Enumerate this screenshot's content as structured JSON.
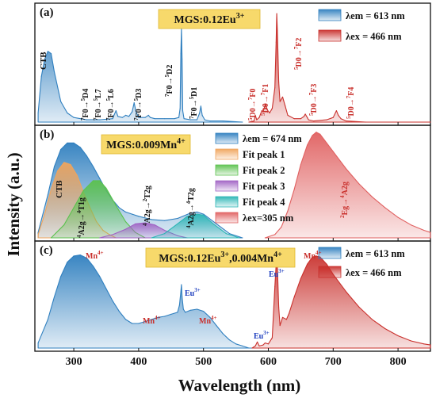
{
  "figure": {
    "ylabel": "Intensity (a.u.)",
    "xlabel": "Wavelength (nm)",
    "xlim": [
      240,
      850
    ],
    "xticks": [
      "300",
      "400",
      "500",
      "600",
      "700",
      "800"
    ],
    "xtick_values": [
      300,
      400,
      500,
      600,
      700,
      800
    ]
  },
  "chart_data": [
    {
      "type": "area",
      "panel_label": "(a)",
      "title": "MGS:0.12Eu",
      "title_sup": "3+",
      "xlim": [
        240,
        850
      ],
      "legend": [
        "λem = 613 nm",
        "λex = 466 nm"
      ],
      "colors": {
        "excitation": "#2f7fbf",
        "emission": "#c9302c"
      },
      "series": [
        {
          "name": "λem = 613 nm",
          "x": [
            245,
            250,
            255,
            260,
            265,
            270,
            280,
            290,
            300,
            320,
            340,
            360,
            362,
            365,
            368,
            375,
            380,
            385,
            390,
            393,
            396,
            400,
            410,
            415,
            418,
            425,
            440,
            455,
            462,
            464,
            465,
            466,
            467,
            468,
            470,
            480,
            490,
            494,
            496,
            498,
            502,
            510,
            530,
            560
          ],
          "y": [
            0.08,
            0.4,
            0.55,
            0.62,
            0.6,
            0.44,
            0.18,
            0.08,
            0.04,
            0.02,
            0.02,
            0.03,
            0.06,
            0.1,
            0.05,
            0.04,
            0.06,
            0.05,
            0.09,
            0.17,
            0.09,
            0.04,
            0.04,
            0.06,
            0.04,
            0.03,
            0.03,
            0.03,
            0.04,
            0.12,
            0.6,
            0.82,
            0.55,
            0.1,
            0.03,
            0.02,
            0.02,
            0.08,
            0.14,
            0.06,
            0.02,
            0.01,
            0.01,
            0.0
          ]
        },
        {
          "name": "λex = 466 nm",
          "x": [
            570,
            578,
            580,
            582,
            586,
            590,
            592,
            594,
            596,
            598,
            602,
            606,
            610,
            612,
            613,
            614,
            616,
            618,
            622,
            626,
            630,
            640,
            650,
            655,
            657,
            660,
            662,
            670,
            690,
            700,
            705,
            708,
            712,
            720,
            750,
            800,
            850
          ],
          "y": [
            0.0,
            0.01,
            0.06,
            0.02,
            0.04,
            0.1,
            0.09,
            0.13,
            0.16,
            0.11,
            0.08,
            0.12,
            0.3,
            0.7,
            0.95,
            0.8,
            0.35,
            0.18,
            0.22,
            0.14,
            0.06,
            0.03,
            0.03,
            0.05,
            0.07,
            0.04,
            0.02,
            0.01,
            0.02,
            0.04,
            0.1,
            0.06,
            0.03,
            0.01,
            0.0,
            0.0,
            0.0
          ]
        }
      ],
      "annotations": [
        {
          "text": "CTB",
          "color": "#111111"
        },
        {
          "pre": "7",
          "mid": "F0→",
          "sup": "5",
          "post": "D4",
          "color": "#111111"
        },
        {
          "pre": "7",
          "mid": "F0→",
          "sup": "5",
          "post": "L7",
          "color": "#111111"
        },
        {
          "pre": "7",
          "mid": "F0→",
          "sup": "5",
          "post": "L6",
          "color": "#111111"
        },
        {
          "pre": "7",
          "mid": "F0→",
          "sup": "5",
          "post": "D3",
          "color": "#111111"
        },
        {
          "pre": "7",
          "mid": "F0→",
          "sup": "5",
          "post": "D2",
          "color": "#111111"
        },
        {
          "pre": "7",
          "mid": "F0→",
          "sup": "5",
          "post": "D1",
          "color": "#111111"
        },
        {
          "pre": "5",
          "mid": "D0→",
          "sup": "7",
          "post": "F0",
          "color": "#c9302c"
        },
        {
          "pre": "5",
          "mid": "D0→",
          "sup": "7",
          "post": "F1",
          "color": "#c9302c"
        },
        {
          "pre": "5",
          "mid": "D0→",
          "sup": "7",
          "post": "F2",
          "color": "#c9302c"
        },
        {
          "pre": "5",
          "mid": "D0→",
          "sup": "7",
          "post": "F3",
          "color": "#c9302c"
        },
        {
          "pre": "5",
          "mid": "D0→",
          "sup": "7",
          "post": "F4",
          "color": "#c9302c"
        }
      ]
    },
    {
      "type": "area",
      "panel_label": "(b)",
      "title": "MGS:0.009Mn",
      "title_sup": "4+",
      "xlim": [
        240,
        850
      ],
      "legend": [
        "λem = 674 nm",
        "Fit peak 1",
        "Fit peak 2",
        "Fit peak 3",
        "Fit peak 4",
        "λex=305 nm"
      ],
      "colors": {
        "excitation": "#2f7fbf",
        "fit1": "#f0a45c",
        "fit2": "#5cc24e",
        "fit3": "#a062c4",
        "fit4": "#2bb5b5",
        "emission": "#e06060"
      },
      "series": [
        {
          "name": "λem = 674 nm",
          "x": [
            245,
            260,
            270,
            280,
            290,
            300,
            310,
            320,
            330,
            340,
            350,
            360,
            370,
            380,
            390,
            400,
            420,
            440,
            460,
            480,
            490,
            500,
            520,
            540,
            560
          ],
          "y": [
            0.05,
            0.4,
            0.66,
            0.82,
            0.88,
            0.88,
            0.84,
            0.76,
            0.66,
            0.55,
            0.44,
            0.35,
            0.28,
            0.24,
            0.22,
            0.2,
            0.17,
            0.16,
            0.18,
            0.23,
            0.24,
            0.22,
            0.13,
            0.04,
            0.0
          ]
        },
        {
          "name": "Fit peak 1",
          "x": [
            245,
            255,
            265,
            275,
            285,
            295,
            305,
            315,
            325,
            335,
            345,
            355,
            365
          ],
          "y": [
            0.03,
            0.22,
            0.45,
            0.62,
            0.7,
            0.68,
            0.58,
            0.42,
            0.28,
            0.15,
            0.07,
            0.03,
            0.0
          ]
        },
        {
          "name": "Fit peak 2",
          "x": [
            265,
            285,
            300,
            315,
            330,
            340,
            350,
            365,
            380,
            395,
            410
          ],
          "y": [
            0.0,
            0.12,
            0.28,
            0.44,
            0.53,
            0.53,
            0.46,
            0.3,
            0.15,
            0.05,
            0.0
          ]
        },
        {
          "name": "Fit peak 3",
          "x": [
            340,
            360,
            380,
            395,
            410,
            425,
            440,
            460,
            475
          ],
          "y": [
            0.0,
            0.03,
            0.08,
            0.13,
            0.14,
            0.12,
            0.07,
            0.02,
            0.0
          ]
        },
        {
          "name": "Fit peak 4",
          "x": [
            420,
            440,
            460,
            475,
            490,
            500,
            515,
            535,
            555
          ],
          "y": [
            0.0,
            0.04,
            0.13,
            0.2,
            0.22,
            0.21,
            0.13,
            0.04,
            0.0
          ]
        },
        {
          "name": "λex=305 nm",
          "x": [
            595,
            610,
            620,
            630,
            640,
            650,
            660,
            668,
            674,
            680,
            690,
            700,
            720,
            740,
            760,
            780,
            800,
            820,
            840,
            850
          ],
          "y": [
            0.0,
            0.03,
            0.1,
            0.25,
            0.45,
            0.68,
            0.86,
            0.95,
            0.98,
            0.96,
            0.88,
            0.8,
            0.64,
            0.5,
            0.38,
            0.28,
            0.19,
            0.12,
            0.07,
            0.05
          ]
        }
      ],
      "annotations": [
        {
          "text": "CTB",
          "color": "#111111"
        },
        {
          "pre": "4",
          "mid": "A2g→",
          "sup": "4",
          "post": "T1g",
          "color": "#111111"
        },
        {
          "pre": "4",
          "mid": "A2g→",
          "sup": "2",
          "post": "T2g",
          "color": "#111111"
        },
        {
          "pre": "4",
          "mid": "A2g→",
          "sup": "4",
          "post": "T2g",
          "color": "#111111"
        },
        {
          "pre": "2",
          "mid": "Eg→",
          "sup": "4",
          "post": "A2g",
          "color": "#c9302c"
        }
      ]
    },
    {
      "type": "area",
      "panel_label": "(c)",
      "title": "MGS:0.12Eu",
      "title_sup": "3+",
      "title2": ",0.004Mn",
      "title2_sup": "4+",
      "xlim": [
        240,
        850
      ],
      "legend": [
        "λem = 613 nm",
        "λex = 466 nm"
      ],
      "colors": {
        "excitation": "#2f7fbf",
        "emission": "#c9302c"
      },
      "series": [
        {
          "name": "λem = 613 nm",
          "x": [
            245,
            260,
            270,
            280,
            290,
            300,
            310,
            320,
            330,
            340,
            350,
            360,
            370,
            380,
            390,
            400,
            410,
            420,
            430,
            440,
            450,
            460,
            463,
            465,
            466,
            467,
            469,
            472,
            480,
            490,
            500,
            510,
            520,
            530,
            540,
            550,
            560,
            570,
            575
          ],
          "y": [
            0.05,
            0.28,
            0.5,
            0.7,
            0.84,
            0.9,
            0.91,
            0.88,
            0.8,
            0.7,
            0.58,
            0.46,
            0.36,
            0.28,
            0.24,
            0.24,
            0.26,
            0.28,
            0.3,
            0.31,
            0.33,
            0.35,
            0.42,
            0.55,
            0.62,
            0.5,
            0.38,
            0.35,
            0.37,
            0.38,
            0.36,
            0.3,
            0.22,
            0.14,
            0.08,
            0.04,
            0.02,
            0.0,
            0.0
          ]
        },
        {
          "name": "λex = 466 nm",
          "x": [
            575,
            580,
            583,
            586,
            592,
            595,
            600,
            606,
            610,
            613,
            614,
            616,
            618,
            622,
            628,
            632,
            640,
            650,
            660,
            668,
            674,
            680,
            690,
            700,
            720,
            740,
            760,
            780,
            800,
            820,
            840,
            850
          ],
          "y": [
            0.0,
            0.02,
            0.06,
            0.02,
            0.03,
            0.05,
            0.04,
            0.1,
            0.6,
            0.92,
            0.8,
            0.4,
            0.22,
            0.3,
            0.28,
            0.34,
            0.5,
            0.68,
            0.82,
            0.89,
            0.9,
            0.89,
            0.82,
            0.72,
            0.55,
            0.4,
            0.28,
            0.19,
            0.12,
            0.07,
            0.04,
            0.03
          ]
        }
      ],
      "annotations": [
        {
          "text": "Mn",
          "sup": "4+",
          "color": "#c9302c"
        },
        {
          "text": "Mn",
          "sup": "4+",
          "color": "#c9302c"
        },
        {
          "text": "Mn",
          "sup": "4+",
          "color": "#c9302c"
        },
        {
          "text": "Mn",
          "sup": "4+",
          "color": "#c9302c"
        },
        {
          "text": "Eu",
          "sup": "3+",
          "color": "#1f3fbf"
        },
        {
          "text": "Eu",
          "sup": "3+",
          "color": "#1f3fbf"
        },
        {
          "text": "Eu",
          "sup": "3+",
          "color": "#1f3fbf"
        }
      ]
    }
  ]
}
